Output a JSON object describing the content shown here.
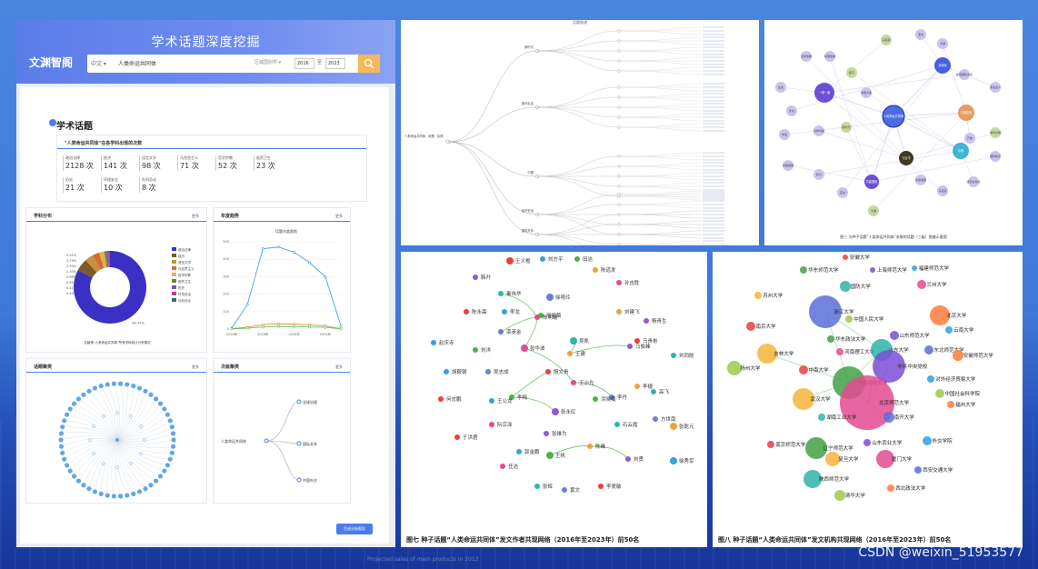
{
  "app": {
    "title": "学术话题深度挖掘",
    "logo": "文渊智阁",
    "search": {
      "lang": "中文",
      "query": "人类命运共同体",
      "area_placeholder": "区域国别学",
      "year_from": "2016",
      "to": "至",
      "year_to": "2023"
    },
    "section_title": "学术话题",
    "subject_card": {
      "title": "\"人类命运共同体\"在各学科出现的次数",
      "stats": [
        {
          "label": "政治法律",
          "value": "2128",
          "unit": "次"
        },
        {
          "label": "经济",
          "value": "141",
          "unit": "次"
        },
        {
          "label": "语言文学",
          "value": "98",
          "unit": "次"
        },
        {
          "label": "马克思主义",
          "value": "71",
          "unit": "次"
        },
        {
          "label": "哲学宗教",
          "value": "52",
          "unit": "次"
        },
        {
          "label": "医药卫生",
          "value": "23",
          "unit": "次"
        },
        {
          "label": "历史",
          "value": "21",
          "unit": "次"
        },
        {
          "label": "环境安全",
          "value": "10",
          "unit": "次"
        },
        {
          "label": "社科总论",
          "value": "8",
          "unit": "次"
        }
      ]
    },
    "cards": {
      "subject_dist": {
        "title": "学科分布",
        "more": "更多",
        "caption": "文献按\"人类命运共同体\"所有学科统计分布情况"
      },
      "yearly": {
        "title": "年度趋势",
        "more": "更多",
        "chart_title": "话题年度趋势"
      },
      "cloud": {
        "title": "话题聚类",
        "more": "更多"
      },
      "cluster": {
        "title": "次级聚类",
        "more": "更多",
        "root": "人类命运共同体",
        "leaves": [
          "全球治理",
          "国际关系",
          "中国外交"
        ]
      }
    },
    "generate_button": "生成分析报告"
  },
  "chart_data": [
    {
      "type": "pie",
      "values_pct": [
        82.41,
        5.51,
        3.79,
        2.94,
        2.34,
        0.89,
        0.81,
        0.41,
        0.4
      ],
      "labels_pct": [
        "82.41%",
        "5.51%",
        "3.79%",
        "2.94%",
        "2.34%",
        "0.89%",
        "0.81%",
        "0.41%",
        "0.4%"
      ],
      "legend": [
        "政治法律",
        "经济",
        "语言文学",
        "马克思主义",
        "哲学宗教",
        "医药卫生",
        "历史",
        "环境安全",
        "社科总论"
      ],
      "colors": [
        "#3b2fc6",
        "#7c5a2c",
        "#c9903a",
        "#d46a3a",
        "#e0b14d",
        "#5b8f3a",
        "#8a4fb3",
        "#c33d8f",
        "#2f6d8f"
      ]
    },
    {
      "type": "line",
      "title": "话题年度趋势",
      "x": [
        2016,
        2017,
        2018,
        2019,
        2020,
        2021,
        2022,
        2023
      ],
      "xticks": [
        "2016年",
        "2018年",
        "2020年",
        "2022年"
      ],
      "ylim": [
        0,
        500
      ],
      "yticks": [
        "0",
        "100",
        "200",
        "300",
        "400",
        "500"
      ],
      "series": [
        {
          "values": [
            5,
            140,
            460,
            470,
            440,
            380,
            300,
            20
          ],
          "color": "#4aa3d8"
        },
        {
          "values": [
            3,
            10,
            25,
            30,
            28,
            24,
            18,
            2
          ],
          "color": "#e09040"
        },
        {
          "values": [
            1,
            5,
            12,
            15,
            14,
            12,
            10,
            1
          ],
          "color": "#6bbf59"
        }
      ]
    }
  ],
  "topic_tree": {
    "title": "话题图谱",
    "root": "人类命运共同体 · 政策 · 实践",
    "branches": [
      "新时代",
      "现代社会",
      "中国",
      "经济安全",
      "国际关系"
    ]
  },
  "seed_network": {
    "caption": "图三  与种子话题“人类命运共同体”关联的话题（三级）图谱示意图",
    "center": "人类命运共同体",
    "hubs": [
      "一带一路",
      "全球化",
      "中国智慧",
      "习近平",
      "共建国家",
      "中国"
    ],
    "leaves": [
      "马克思",
      "亚洲",
      "大湖",
      "全球治理",
      "中国发展",
      "和平",
      "生态",
      "外交",
      "命运",
      "合作共赢",
      "新时代",
      "中国方案",
      "新型国际关系",
      "多边主义",
      "开放",
      "中华文明",
      "国际秩序",
      "经济全球化"
    ]
  },
  "authors": {
    "caption": "图七 种子话题“人类命运共同体”发文作者共现网络（2016年至2023年）前50名",
    "nodes": [
      "王义桅",
      "刘方平",
      "田洁",
      "陈道发",
      "韩升",
      "孙吉胜",
      "秦伟华",
      "徐艳玲",
      "陈永森",
      "李龙",
      "邢丽菊",
      "刘建飞",
      "杨青生",
      "陈明琨",
      "吴凯",
      "栾英金",
      "马贵彬",
      "赵庆寺",
      "刘洋",
      "王建",
      "马俊峰",
      "张华波",
      "刘同舫",
      "吴志成",
      "殷文贵",
      "胡鞍钢",
      "李梅",
      "李捷",
      "张永红",
      "王沙光",
      "高飞",
      "李丹",
      "何志鹏",
      "王公龙",
      "洪晓楠",
      "张乾元",
      "张维为",
      "阮宗泽",
      "石云霞",
      "方世南",
      "于洪君",
      "郭金鹏",
      "王帆",
      "陈峰",
      "刘勇",
      "任洁",
      "张辉",
      "黄文",
      "李爱敏",
      "徐秀军"
    ]
  },
  "institutions": {
    "caption": "图八 种子话题“人类命运共同体”发文机构共现网络（2016年至2023年）前50名",
    "nodes": [
      "安徽大学",
      "华东师范大学",
      "上海师范大学",
      "福建师范大学",
      "苏州大学",
      "兰州大学",
      "国防大学",
      "浙江大学",
      "中国人民大学",
      "北京大学",
      "南京大学",
      "华东政法大学",
      "山东师范大学",
      "云南大学",
      "吉林大学",
      "河南理工大学",
      "山东大学",
      "东北师范大学",
      "扬州大学",
      "安徽师范大学",
      "中南大学",
      "中南财经大学",
      "中共中央党校",
      "对外经济贸易大学",
      "武汉大学",
      "北京师范大学",
      "湖南工业大学",
      "南开大学",
      "中国社会科学院",
      "福州大学",
      "南京师范大学",
      "辽宁师范大学",
      "山东农业大学",
      "外交学院",
      "复旦大学",
      "厦门大学",
      "陕西师范大学",
      "西安交通大学",
      "清华大学",
      "西北政法大学"
    ]
  },
  "watermark": "CSDN @weixin_51953577",
  "footer": "Projected sales of main products in 2013"
}
